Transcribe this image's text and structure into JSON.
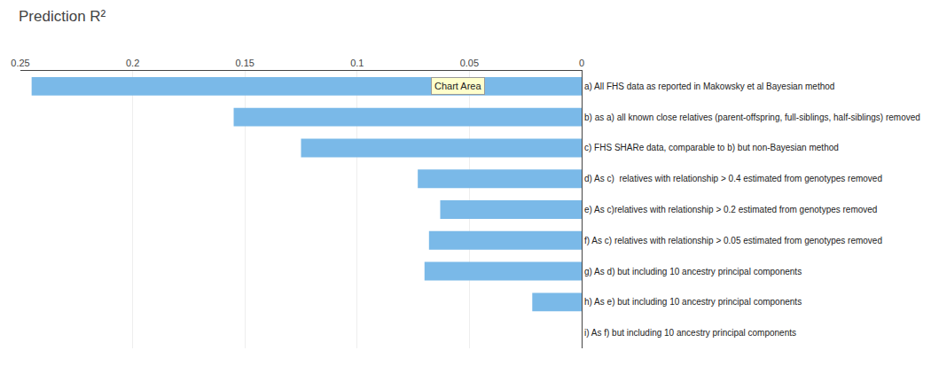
{
  "chart_data": {
    "type": "bar",
    "orientation": "horizontal",
    "title": "Prediction R²",
    "categories": [
      "a) All FHS data as reported in Makowsky et al Bayesian method",
      "b) as a) all known close relatives (parent-offspring, full-siblings, half-siblings) removed",
      "c) FHS SHARe data, comparable to b) but non-Bayesian method",
      "d) As c)  relatives with relationship > 0.4 estimated from genotypes removed",
      "e) As c)relatives with relationship > 0.2 estimated from genotypes removed",
      "f) As c) relatives with relationship > 0.05 estimated from genotypes removed",
      "g) As d) but including 10 ancestry principal components",
      "h) As e) but including 10 ancestry principal components",
      "i) As f) but including 10 ancestry principal components"
    ],
    "values": [
      0.245,
      0.155,
      0.125,
      0.073,
      0.063,
      0.068,
      0.07,
      0.022,
      0.0
    ],
    "color": "#7ab9e8",
    "xlim": [
      0.25,
      0.0
    ],
    "xticks": [
      0.25,
      0.2,
      0.15,
      0.1,
      0.05,
      0.0
    ],
    "grid": true,
    "annotations": [
      {
        "text": "Chart Area",
        "x": 0.055,
        "y": "a) All FHS data as reported in Makowsky et al Bayesian method"
      }
    ]
  }
}
